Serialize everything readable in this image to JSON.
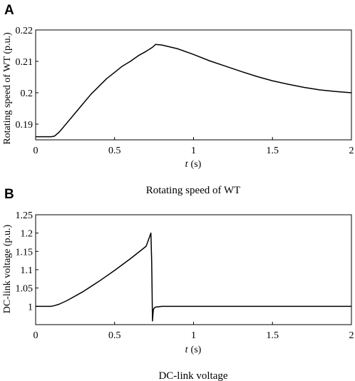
{
  "chart_data": [
    {
      "type": "line",
      "panel_label": "A",
      "title": "",
      "caption": "Rotating speed of WT",
      "ylabel": "Rotating speed of WT (p.u.)",
      "xlabel_var": "t",
      "xlabel_unit": "(s)",
      "xlim": [
        0,
        2
      ],
      "ylim": [
        0.185,
        0.22
      ],
      "xticks": [
        0,
        0.5,
        1,
        1.5,
        2
      ],
      "xtick_labels": [
        "0",
        "0.5",
        "1",
        "1.5",
        "2"
      ],
      "yticks": [
        0.19,
        0.2,
        0.21,
        0.22
      ],
      "ytick_labels": [
        "0.19",
        "0.2",
        "0.21",
        "0.22"
      ],
      "grid": false,
      "series": [
        {
          "color": "#000000",
          "x": [
            0,
            0.05,
            0.1,
            0.12,
            0.15,
            0.2,
            0.25,
            0.3,
            0.35,
            0.4,
            0.45,
            0.5,
            0.55,
            0.6,
            0.65,
            0.7,
            0.74,
            0.76,
            0.8,
            0.9,
            1.0,
            1.1,
            1.2,
            1.3,
            1.4,
            1.5,
            1.6,
            1.7,
            1.8,
            1.9,
            2.0
          ],
          "y": [
            0.186,
            0.186,
            0.186,
            0.1862,
            0.1875,
            0.1905,
            0.1935,
            0.1965,
            0.1995,
            0.202,
            0.2045,
            0.2065,
            0.2085,
            0.21,
            0.2118,
            0.2132,
            0.2145,
            0.2154,
            0.2152,
            0.214,
            0.2122,
            0.2102,
            0.2085,
            0.2068,
            0.2052,
            0.2038,
            0.2027,
            0.2017,
            0.2009,
            0.2004,
            0.2
          ]
        }
      ]
    },
    {
      "type": "line",
      "panel_label": "B",
      "title": "",
      "caption": "DC-link voltage",
      "ylabel": "DC-link voltage (p.u.)",
      "xlabel_var": "t",
      "xlabel_unit": "(s)",
      "xlim": [
        0,
        2
      ],
      "ylim": [
        0.95,
        1.25
      ],
      "xticks": [
        0,
        0.5,
        1,
        1.5,
        2
      ],
      "xtick_labels": [
        "0",
        "0.5",
        "1",
        "1.5",
        "2"
      ],
      "yticks": [
        1,
        1.05,
        1.1,
        1.15,
        1.2,
        1.25
      ],
      "ytick_labels": [
        "1",
        "1.05",
        "1.1",
        "1.15",
        "1.2",
        "1.25"
      ],
      "grid": false,
      "series": [
        {
          "color": "#000000",
          "x": [
            0,
            0.05,
            0.1,
            0.12,
            0.15,
            0.2,
            0.3,
            0.4,
            0.5,
            0.6,
            0.7,
            0.73,
            0.735,
            0.74,
            0.745,
            0.75,
            0.76,
            0.78,
            0.8,
            0.9,
            1.0,
            1.5,
            2.0
          ],
          "y": [
            1.0,
            1.0,
            1.0,
            1.002,
            1.006,
            1.016,
            1.04,
            1.068,
            1.098,
            1.13,
            1.164,
            1.2,
            1.12,
            0.96,
            0.99,
            0.995,
            0.998,
            0.999,
            1.0,
            1.0,
            1.0,
            1.0,
            1.0
          ]
        }
      ]
    }
  ]
}
